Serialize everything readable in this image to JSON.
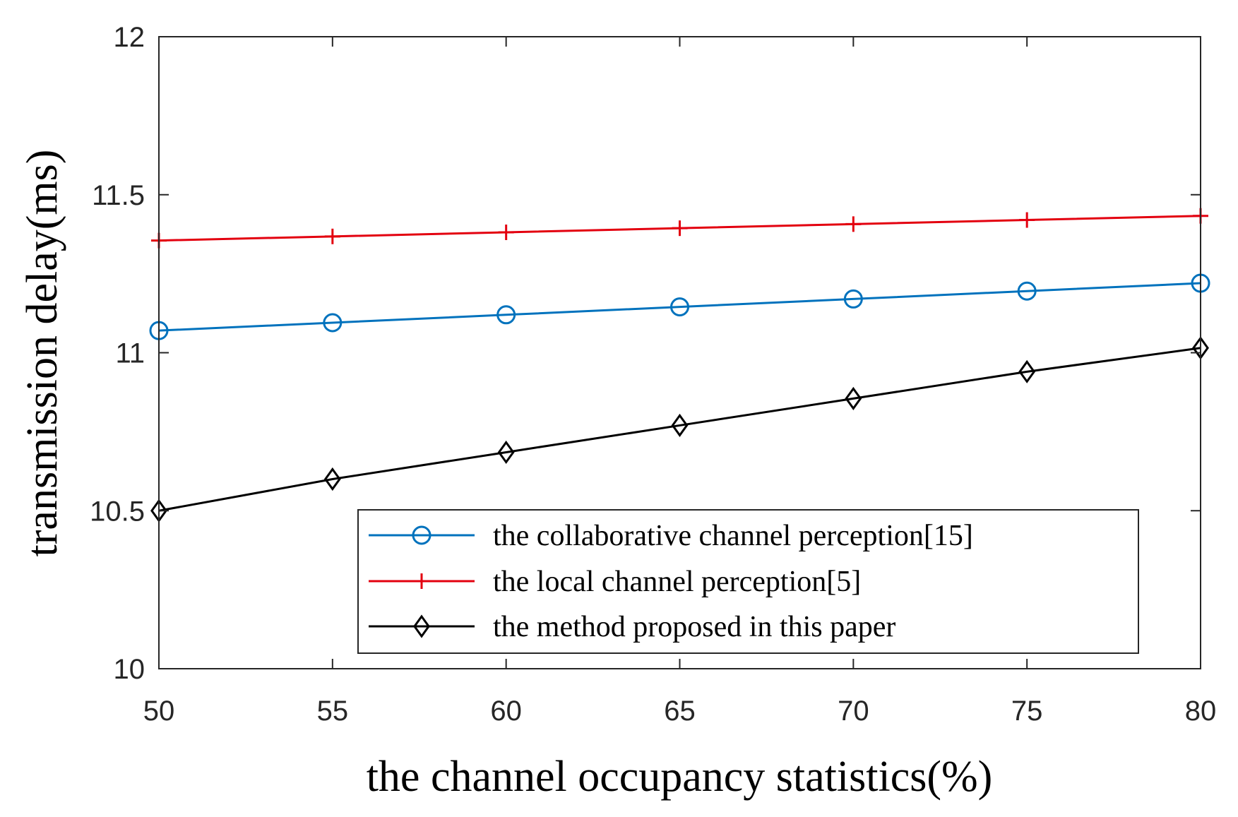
{
  "chart_data": {
    "type": "line",
    "title": "",
    "xlabel": "the channel occupancy statistics(%)",
    "ylabel": "transmission delay(ms)",
    "xlim": [
      50,
      80
    ],
    "ylim": [
      10,
      12
    ],
    "xticks": [
      50,
      55,
      60,
      65,
      70,
      75,
      80
    ],
    "yticks": [
      10,
      10.5,
      11,
      11.5,
      12
    ],
    "xtick_labels": [
      "50",
      "55",
      "60",
      "65",
      "70",
      "75",
      "80"
    ],
    "ytick_labels": [
      "10",
      "10.5",
      "11",
      "11.5",
      "12"
    ],
    "grid": false,
    "legend_position": "bottom-right",
    "x": [
      50,
      55,
      60,
      65,
      70,
      75,
      80
    ],
    "series": [
      {
        "name": "the collaborative channel perception[15]",
        "values": [
          11.07,
          11.095,
          11.12,
          11.145,
          11.17,
          11.195,
          11.22
        ],
        "color": "#0072BD",
        "marker": "circle"
      },
      {
        "name": "the local channel perception[5]",
        "values": [
          11.355,
          11.368,
          11.381,
          11.394,
          11.407,
          11.42,
          11.433
        ],
        "color": "#E3000F",
        "marker": "plus"
      },
      {
        "name": "the method proposed in this paper",
        "values": [
          10.5,
          10.6,
          10.685,
          10.77,
          10.855,
          10.94,
          11.015
        ],
        "color": "#000000",
        "marker": "diamond"
      }
    ]
  }
}
